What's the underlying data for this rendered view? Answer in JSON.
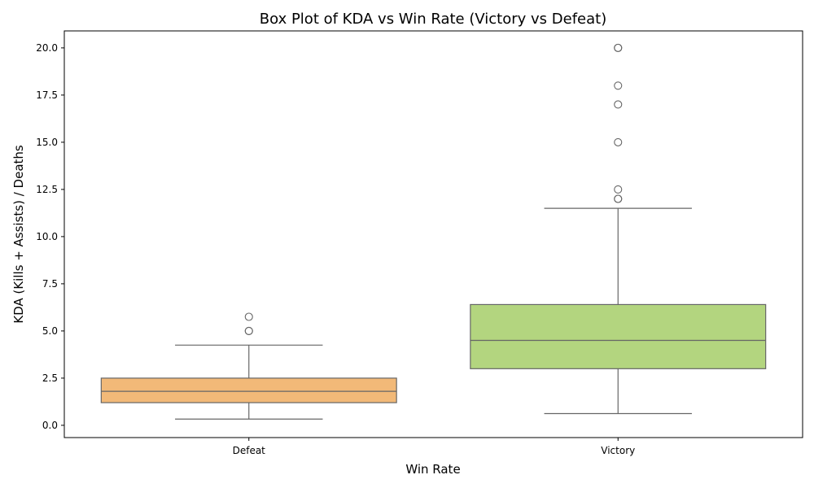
{
  "chart_data": {
    "type": "box",
    "title": "Box Plot of KDA vs Win Rate (Victory vs Defeat)",
    "xlabel": "Win Rate",
    "ylabel": "KDA (Kills + Assists) / Deaths",
    "categories": [
      "Defeat",
      "Victory"
    ],
    "ylim": [
      -0.65,
      20.9
    ],
    "yticks": [
      "0.0",
      "2.5",
      "5.0",
      "7.5",
      "10.0",
      "12.5",
      "15.0",
      "17.5",
      "20.0"
    ],
    "ytick_values": [
      0,
      2.5,
      5,
      7.5,
      10,
      12.5,
      15,
      17.5,
      20
    ],
    "grid": false,
    "boxes": [
      {
        "category": "Defeat",
        "whisker_low": 0.33,
        "q1": 1.2,
        "median": 1.8,
        "q3": 2.5,
        "whisker_high": 4.25,
        "outliers": [
          5.0,
          5.0,
          5.75
        ],
        "color": "#f2b978"
      },
      {
        "category": "Victory",
        "whisker_low": 0.62,
        "q1": 3.0,
        "median": 4.5,
        "q3": 6.4,
        "whisker_high": 11.5,
        "outliers": [
          12.0,
          12.0,
          12.5,
          15.0,
          17.0,
          18.0,
          20.0,
          20.0
        ],
        "color": "#b3d57f"
      }
    ],
    "line_color": "#666666"
  }
}
